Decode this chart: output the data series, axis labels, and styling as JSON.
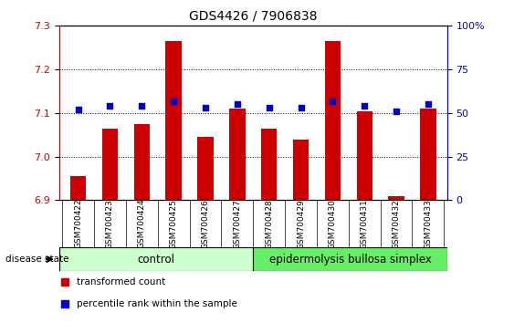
{
  "title": "GDS4426 / 7906838",
  "samples": [
    "GSM700422",
    "GSM700423",
    "GSM700424",
    "GSM700425",
    "GSM700426",
    "GSM700427",
    "GSM700428",
    "GSM700429",
    "GSM700430",
    "GSM700431",
    "GSM700432",
    "GSM700433"
  ],
  "transformed_counts": [
    6.955,
    7.065,
    7.075,
    7.265,
    7.045,
    7.11,
    7.065,
    7.04,
    7.265,
    7.105,
    6.91,
    7.11
  ],
  "percentile_ranks": [
    52,
    54,
    54,
    57,
    53,
    55,
    53,
    53,
    57,
    54,
    51,
    55
  ],
  "ylim_left": [
    6.9,
    7.3
  ],
  "ylim_right": [
    0,
    100
  ],
  "yticks_left": [
    6.9,
    7.0,
    7.1,
    7.2,
    7.3
  ],
  "yticks_right": [
    0,
    25,
    50,
    75,
    100
  ],
  "ytick_labels_right": [
    "0",
    "25",
    "50",
    "75",
    "100%"
  ],
  "bar_color": "#CC0000",
  "dot_color": "#0000CC",
  "grid_color": "#000000",
  "bar_width": 0.5,
  "n_control": 6,
  "n_ebs": 6,
  "control_label": "control",
  "ebs_label": "epidermolysis bullosa simplex",
  "disease_state_label": "disease state",
  "legend_bar_label": "transformed count",
  "legend_dot_label": "percentile rank within the sample",
  "control_bg": "#ccffcc",
  "ebs_bg": "#66ee66",
  "xlabel_bg": "#cccccc",
  "base_value": 6.9
}
